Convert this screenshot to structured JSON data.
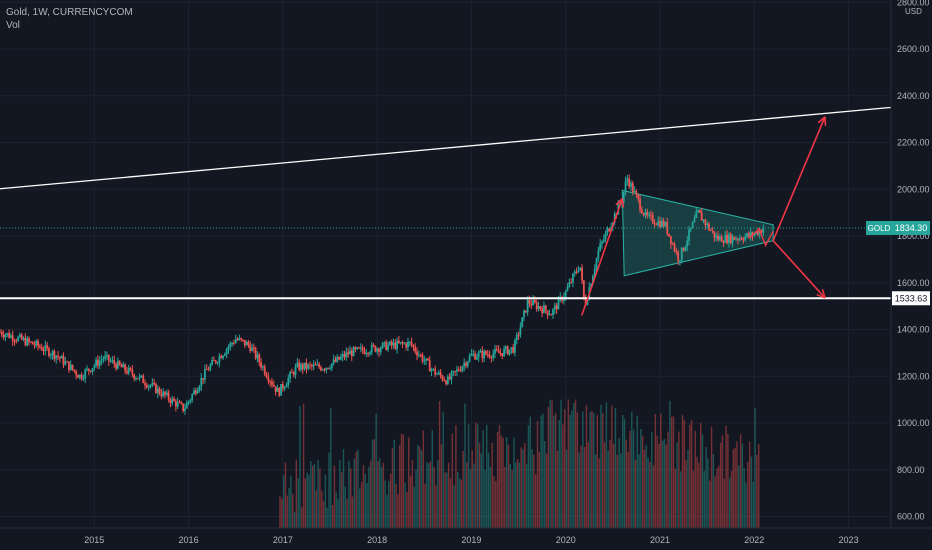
{
  "legend": {
    "title": "Gold, 1W, CURRENCYCOM",
    "volume": "Vol"
  },
  "chart_data": {
    "type": "candlestick",
    "symbol": "GOLD",
    "interval": "1W",
    "source": "CURRENCYCOM",
    "currency": "USD",
    "last_price": 1834.3,
    "last_price_label": "1834.30",
    "support_level": 1533.63,
    "support_label": "1533.63",
    "y_ticks": [
      600,
      800,
      1000,
      1200,
      1400,
      1600,
      1800,
      2000,
      2200,
      2400,
      2600,
      2800
    ],
    "y_tick_labels": [
      "600.00",
      "800.00",
      "1000.00",
      "1200.00",
      "1400.00",
      "1600.00",
      "1800.00",
      "2000.00",
      "2200.00",
      "2400.00",
      "2600.00",
      "2800.00"
    ],
    "x_ticks": [
      2015,
      2016,
      2017,
      2018,
      2019,
      2020,
      2021,
      2022,
      2023
    ],
    "x_range": [
      2014.0,
      2023.45
    ],
    "price_series": {
      "x": [
        2014.0,
        2014.4,
        2014.6,
        2014.85,
        2015.1,
        2015.45,
        2015.6,
        2015.95,
        2016.2,
        2016.5,
        2016.65,
        2016.95,
        2017.15,
        2017.45,
        2017.55,
        2017.7,
        2018.1,
        2018.35,
        2018.6,
        2018.75,
        2019.0,
        2019.3,
        2019.45,
        2019.6,
        2019.85,
        2020.0,
        2020.15,
        2020.2,
        2020.35,
        2020.6,
        2020.65,
        2020.85,
        2021.05,
        2021.2,
        2021.4,
        2021.6,
        2021.75,
        2021.95,
        2022.1
      ],
      "y": [
        1390,
        1330,
        1290,
        1200,
        1280,
        1200,
        1160,
        1060,
        1230,
        1360,
        1330,
        1130,
        1240,
        1240,
        1260,
        1300,
        1330,
        1340,
        1220,
        1180,
        1290,
        1300,
        1320,
        1520,
        1470,
        1560,
        1680,
        1500,
        1740,
        1960,
        2050,
        1880,
        1850,
        1700,
        1900,
        1790,
        1790,
        1800,
        1834
      ]
    },
    "volume_series": {
      "x_start": 2016.97,
      "x_end": 2022.05,
      "min": 600,
      "peak": 1100
    },
    "trendline": {
      "x": [
        2014.0,
        2023.45
      ],
      "y": [
        2002,
        2350
      ]
    },
    "triangle": {
      "upper": [
        [
          2020.6,
          1995
        ],
        [
          2022.2,
          1848
        ]
      ],
      "lower": [
        [
          2020.62,
          1630
        ],
        [
          2022.2,
          1780
        ]
      ]
    },
    "arrows": {
      "rally": {
        "x": [
          2020.17,
          2020.6
        ],
        "y": [
          1460,
          1960
        ]
      },
      "up_target": {
        "x": [
          2022.2,
          2022.75
        ],
        "y": [
          1780,
          2310
        ]
      },
      "down_target": {
        "x": [
          2022.2,
          2022.75
        ],
        "y": [
          1780,
          1535
        ]
      }
    },
    "colors": {
      "background": "#131722",
      "up": "#26a69a",
      "down": "#ef5350",
      "triangle_fill": "#1f6e68",
      "arrow": "#f23645",
      "line": "#ffffff",
      "price_label": "#26a69a"
    }
  }
}
